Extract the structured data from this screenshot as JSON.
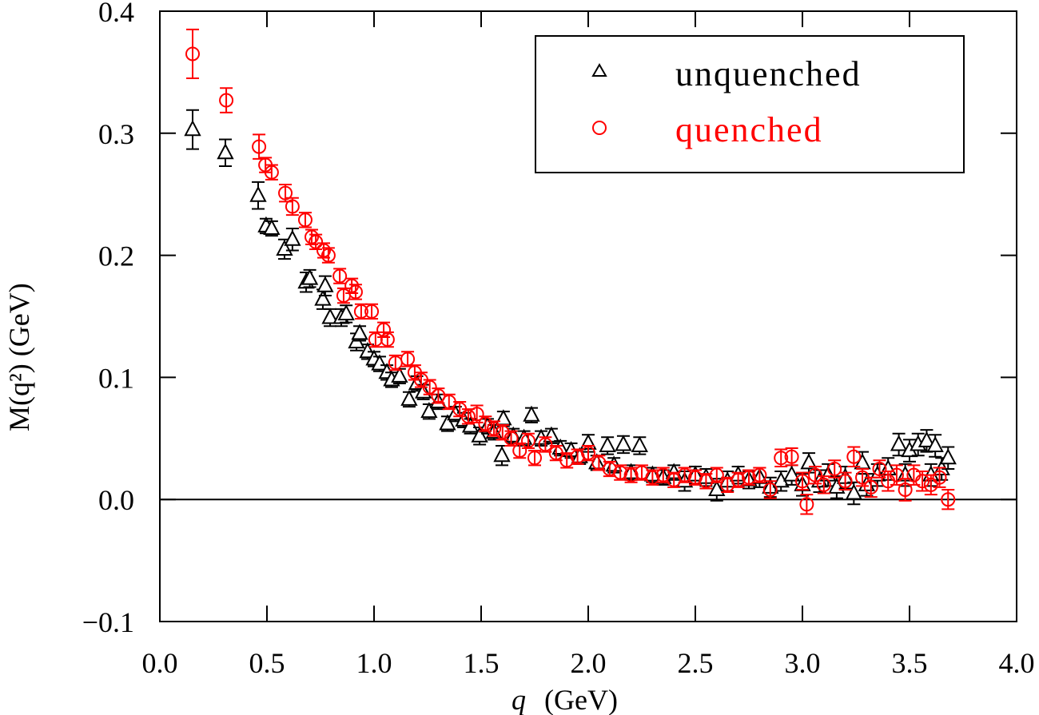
{
  "chart_data": {
    "type": "scatter",
    "title": "",
    "xlabel": "q (GeV)",
    "xlabel_parts": {
      "var": "q",
      "unit": "(GeV)"
    },
    "ylabel": "M(q²) (GeV)",
    "ylabel_parts": {
      "func": "M",
      "arg": "(q",
      "sup": "2",
      "close": ")",
      "unit": "(GeV)"
    },
    "xlim": [
      0.0,
      4.0
    ],
    "ylim": [
      -0.1,
      0.4
    ],
    "xticks": [
      "0.0",
      "0.5",
      "1.0",
      "1.5",
      "2.0",
      "2.5",
      "3.0",
      "3.5",
      "4.0"
    ],
    "yticks": [
      "−0.1",
      "0.0",
      "0.1",
      "0.2",
      "0.3",
      "0.4"
    ],
    "grid": false,
    "zero_line": true,
    "legend_position": "top-right",
    "point_format": "[q, M, error]",
    "series": [
      {
        "name": "unquenched",
        "marker": "triangle",
        "color": "#000000",
        "points": [
          [
            0.153,
            0.303,
            0.016
          ],
          [
            0.306,
            0.284,
            0.011
          ],
          [
            0.459,
            0.249,
            0.011
          ],
          [
            0.496,
            0.224,
            0.006
          ],
          [
            0.522,
            0.222,
            0.006
          ],
          [
            0.582,
            0.205,
            0.008
          ],
          [
            0.619,
            0.213,
            0.009
          ],
          [
            0.683,
            0.178,
            0.008
          ],
          [
            0.7,
            0.181,
            0.007
          ],
          [
            0.761,
            0.164,
            0.008
          ],
          [
            0.772,
            0.175,
            0.008
          ],
          [
            0.795,
            0.149,
            0.007
          ],
          [
            0.847,
            0.149,
            0.007
          ],
          [
            0.87,
            0.152,
            0.007
          ],
          [
            0.918,
            0.129,
            0.007
          ],
          [
            0.933,
            0.136,
            0.006
          ],
          [
            0.97,
            0.121,
            0.006
          ],
          [
            1.0,
            0.115,
            0.006
          ],
          [
            1.026,
            0.111,
            0.006
          ],
          [
            1.06,
            0.104,
            0.006
          ],
          [
            1.082,
            0.098,
            0.006
          ],
          [
            1.119,
            0.101,
            0.006
          ],
          [
            1.164,
            0.082,
            0.006
          ],
          [
            1.2,
            0.095,
            0.006
          ],
          [
            1.23,
            0.088,
            0.006
          ],
          [
            1.257,
            0.072,
            0.006
          ],
          [
            1.3,
            0.08,
            0.006
          ],
          [
            1.343,
            0.062,
            0.006
          ],
          [
            1.38,
            0.07,
            0.006
          ],
          [
            1.418,
            0.065,
            0.006
          ],
          [
            1.45,
            0.06,
            0.006
          ],
          [
            1.493,
            0.052,
            0.007
          ],
          [
            1.53,
            0.06,
            0.006
          ],
          [
            1.56,
            0.055,
            0.006
          ],
          [
            1.597,
            0.036,
            0.008
          ],
          [
            1.604,
            0.066,
            0.006
          ],
          [
            1.65,
            0.052,
            0.006
          ],
          [
            1.7,
            0.05,
            0.006
          ],
          [
            1.735,
            0.069,
            0.006
          ],
          [
            1.78,
            0.05,
            0.006
          ],
          [
            1.828,
            0.052,
            0.006
          ],
          [
            1.87,
            0.042,
            0.006
          ],
          [
            1.92,
            0.04,
            0.006
          ],
          [
            1.96,
            0.035,
            0.006
          ],
          [
            2.0,
            0.046,
            0.007
          ],
          [
            2.04,
            0.03,
            0.006
          ],
          [
            2.09,
            0.044,
            0.007
          ],
          [
            2.12,
            0.028,
            0.006
          ],
          [
            2.164,
            0.045,
            0.007
          ],
          [
            2.2,
            0.022,
            0.006
          ],
          [
            2.24,
            0.044,
            0.007
          ],
          [
            2.3,
            0.02,
            0.006
          ],
          [
            2.35,
            0.018,
            0.006
          ],
          [
            2.4,
            0.022,
            0.006
          ],
          [
            2.45,
            0.015,
            0.008
          ],
          [
            2.5,
            0.02,
            0.007
          ],
          [
            2.55,
            0.018,
            0.007
          ],
          [
            2.6,
            0.008,
            0.009
          ],
          [
            2.65,
            0.015,
            0.008
          ],
          [
            2.7,
            0.02,
            0.007
          ],
          [
            2.75,
            0.016,
            0.007
          ],
          [
            2.8,
            0.018,
            0.008
          ],
          [
            2.85,
            0.01,
            0.008
          ],
          [
            2.9,
            0.015,
            0.008
          ],
          [
            2.95,
            0.02,
            0.008
          ],
          [
            3.0,
            0.012,
            0.009
          ],
          [
            3.03,
            0.03,
            0.008
          ],
          [
            3.08,
            0.015,
            0.009
          ],
          [
            3.12,
            0.02,
            0.009
          ],
          [
            3.16,
            0.01,
            0.009
          ],
          [
            3.2,
            0.018,
            0.009
          ],
          [
            3.24,
            0.005,
            0.009
          ],
          [
            3.28,
            0.03,
            0.009
          ],
          [
            3.3,
            0.012,
            0.009
          ],
          [
            3.35,
            0.02,
            0.009
          ],
          [
            3.4,
            0.025,
            0.009
          ],
          [
            3.45,
            0.045,
            0.009
          ],
          [
            3.48,
            0.02,
            0.009
          ],
          [
            3.5,
            0.04,
            0.009
          ],
          [
            3.54,
            0.045,
            0.009
          ],
          [
            3.58,
            0.048,
            0.009
          ],
          [
            3.6,
            0.02,
            0.009
          ],
          [
            3.62,
            0.044,
            0.009
          ],
          [
            3.65,
            0.025,
            0.009
          ],
          [
            3.68,
            0.034,
            0.009
          ]
        ]
      },
      {
        "name": "quenched",
        "marker": "circle",
        "color": "#ff0000",
        "points": [
          [
            0.153,
            0.365,
            0.02
          ],
          [
            0.31,
            0.327,
            0.01
          ],
          [
            0.463,
            0.289,
            0.01
          ],
          [
            0.493,
            0.274,
            0.006
          ],
          [
            0.522,
            0.268,
            0.006
          ],
          [
            0.586,
            0.251,
            0.007
          ],
          [
            0.619,
            0.24,
            0.007
          ],
          [
            0.679,
            0.229,
            0.006
          ],
          [
            0.709,
            0.215,
            0.006
          ],
          [
            0.728,
            0.211,
            0.006
          ],
          [
            0.765,
            0.204,
            0.006
          ],
          [
            0.787,
            0.2,
            0.006
          ],
          [
            0.84,
            0.183,
            0.006
          ],
          [
            0.858,
            0.167,
            0.006
          ],
          [
            0.896,
            0.175,
            0.006
          ],
          [
            0.914,
            0.17,
            0.006
          ],
          [
            0.94,
            0.154,
            0.006
          ],
          [
            0.989,
            0.154,
            0.006
          ],
          [
            1.007,
            0.131,
            0.006
          ],
          [
            1.045,
            0.139,
            0.006
          ],
          [
            1.063,
            0.131,
            0.006
          ],
          [
            1.1,
            0.112,
            0.006
          ],
          [
            1.157,
            0.115,
            0.006
          ],
          [
            1.19,
            0.104,
            0.006
          ],
          [
            1.22,
            0.098,
            0.006
          ],
          [
            1.26,
            0.092,
            0.006
          ],
          [
            1.3,
            0.085,
            0.006
          ],
          [
            1.35,
            0.08,
            0.006
          ],
          [
            1.4,
            0.074,
            0.006
          ],
          [
            1.44,
            0.068,
            0.006
          ],
          [
            1.48,
            0.07,
            0.007
          ],
          [
            1.52,
            0.062,
            0.006
          ],
          [
            1.56,
            0.058,
            0.006
          ],
          [
            1.6,
            0.055,
            0.006
          ],
          [
            1.64,
            0.05,
            0.006
          ],
          [
            1.68,
            0.04,
            0.006
          ],
          [
            1.72,
            0.048,
            0.006
          ],
          [
            1.75,
            0.034,
            0.006
          ],
          [
            1.8,
            0.045,
            0.006
          ],
          [
            1.85,
            0.038,
            0.006
          ],
          [
            1.9,
            0.032,
            0.006
          ],
          [
            1.95,
            0.035,
            0.006
          ],
          [
            2.0,
            0.038,
            0.006
          ],
          [
            2.05,
            0.03,
            0.006
          ],
          [
            2.1,
            0.025,
            0.006
          ],
          [
            2.15,
            0.022,
            0.006
          ],
          [
            2.2,
            0.02,
            0.006
          ],
          [
            2.25,
            0.022,
            0.006
          ],
          [
            2.3,
            0.018,
            0.006
          ],
          [
            2.35,
            0.02,
            0.006
          ],
          [
            2.4,
            0.016,
            0.006
          ],
          [
            2.45,
            0.02,
            0.006
          ],
          [
            2.5,
            0.018,
            0.006
          ],
          [
            2.55,
            0.015,
            0.006
          ],
          [
            2.6,
            0.02,
            0.006
          ],
          [
            2.65,
            0.012,
            0.006
          ],
          [
            2.7,
            0.016,
            0.006
          ],
          [
            2.75,
            0.018,
            0.006
          ],
          [
            2.8,
            0.02,
            0.006
          ],
          [
            2.85,
            0.008,
            0.007
          ],
          [
            2.9,
            0.034,
            0.007
          ],
          [
            2.95,
            0.035,
            0.007
          ],
          [
            3.0,
            0.015,
            0.007
          ],
          [
            3.02,
            -0.004,
            0.008
          ],
          [
            3.06,
            0.02,
            0.007
          ],
          [
            3.1,
            0.012,
            0.007
          ],
          [
            3.15,
            0.025,
            0.007
          ],
          [
            3.2,
            0.015,
            0.007
          ],
          [
            3.24,
            0.035,
            0.008
          ],
          [
            3.28,
            0.018,
            0.007
          ],
          [
            3.32,
            0.01,
            0.008
          ],
          [
            3.36,
            0.025,
            0.007
          ],
          [
            3.4,
            0.015,
            0.008
          ],
          [
            3.44,
            0.02,
            0.008
          ],
          [
            3.48,
            0.008,
            0.009
          ],
          [
            3.52,
            0.02,
            0.008
          ],
          [
            3.56,
            0.015,
            0.008
          ],
          [
            3.6,
            0.012,
            0.008
          ],
          [
            3.64,
            0.018,
            0.008
          ],
          [
            3.68,
            0.0,
            0.008
          ]
        ]
      }
    ]
  }
}
